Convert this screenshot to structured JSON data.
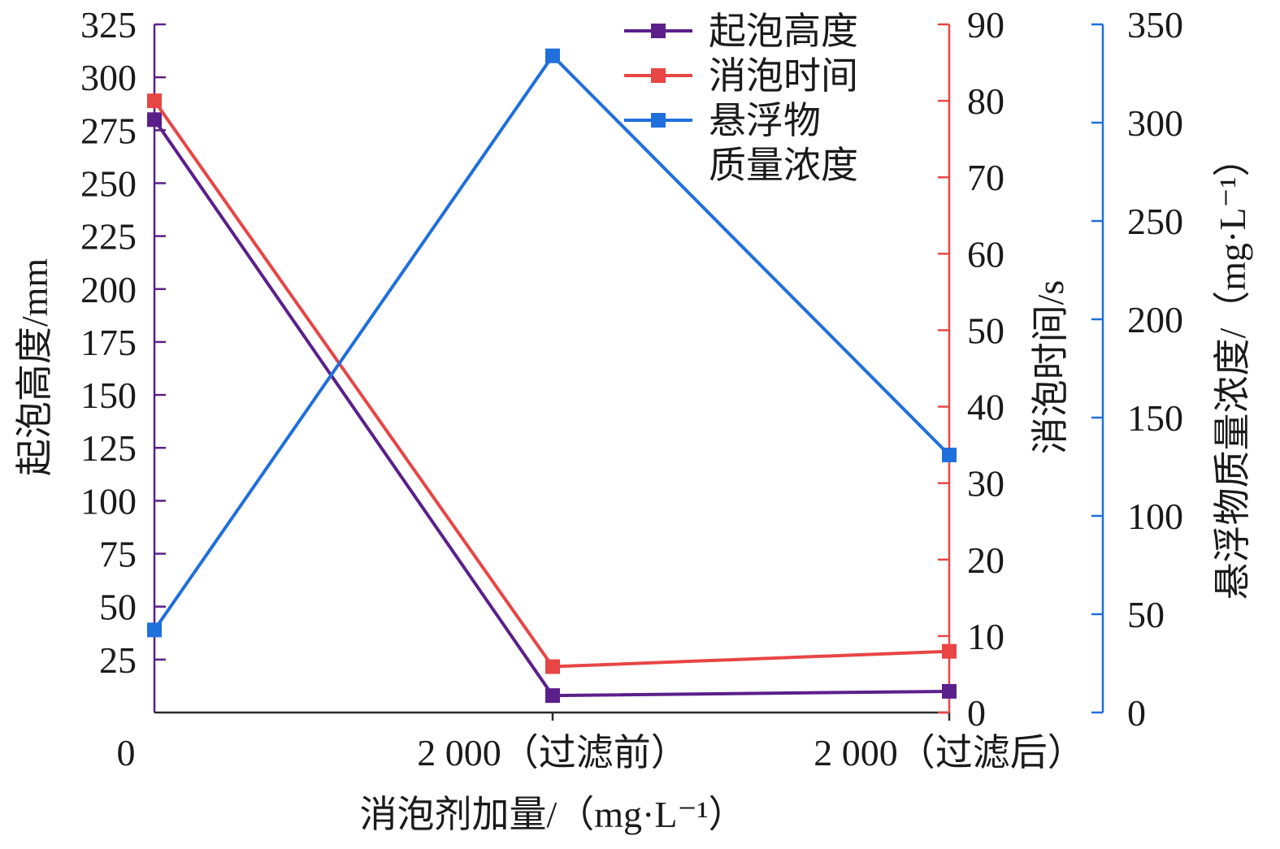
{
  "chart_data": {
    "type": "line",
    "categories": [
      "0",
      "2 000（过滤前）",
      "2 000（过滤后）"
    ],
    "xlabel": "消泡剂加量/（mg·L⁻¹）",
    "series": [
      {
        "name": "起泡高度",
        "axis": "left",
        "color": "#5b1f8a",
        "values": [
          280,
          8,
          10
        ]
      },
      {
        "name": "消泡时间",
        "axis": "right1",
        "color": "#e84545",
        "values": [
          80,
          6,
          8
        ]
      },
      {
        "name": "悬浮物质量浓度",
        "axis": "right2",
        "color": "#1f6fdc",
        "values": [
          42,
          334,
          131
        ]
      }
    ],
    "axes": {
      "left": {
        "label": "起泡高度/mm",
        "color": "#5b1f8a",
        "ylim": [
          0,
          325
        ],
        "ticks": [
          25,
          50,
          75,
          100,
          125,
          150,
          175,
          200,
          225,
          250,
          275,
          300,
          325
        ]
      },
      "right1": {
        "label": "消泡时间/s",
        "color": "#e84545",
        "ylim": [
          0,
          90
        ],
        "ticks": [
          0,
          10,
          20,
          30,
          40,
          50,
          60,
          70,
          80,
          90
        ]
      },
      "right2": {
        "label": "悬浮物质量浓度/（mg·L⁻¹）",
        "color": "#1f6fdc",
        "ylim": [
          0,
          350
        ],
        "ticks": [
          0,
          50,
          100,
          150,
          200,
          250,
          300,
          350
        ]
      }
    },
    "legend": {
      "placement": "top-center",
      "entries": [
        "起泡高度",
        "消泡时间",
        "悬浮物",
        "质量浓度"
      ]
    },
    "grid": false
  }
}
